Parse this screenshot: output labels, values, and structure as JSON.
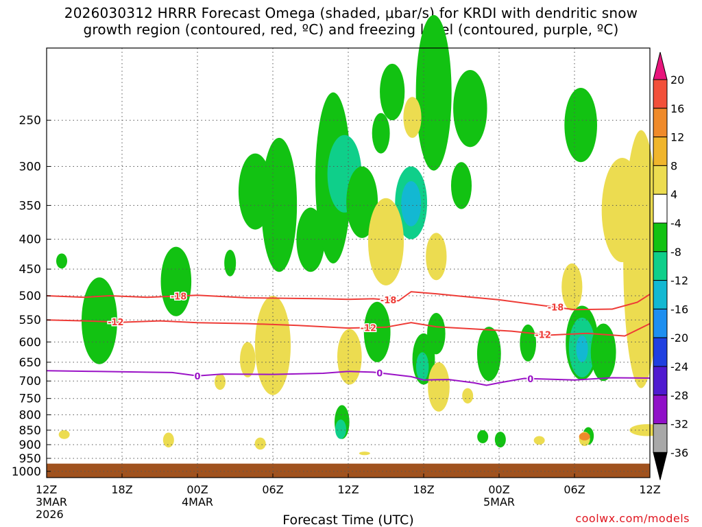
{
  "title_line1": "2026030312 HRRR Forecast Omega (shaded, μbar/s) for KRDI with dendritic snow",
  "title_line2": "growth region (contoured, red, ºC) and freezing level (contoured, purple, ºC)",
  "credit": "coolwx.com/models",
  "chart_data": {
    "type": "time-height cross section",
    "xlabel": "Forecast Time (UTC)",
    "x_ticks": [
      {
        "hour": 0,
        "lines": [
          "12Z",
          "3MAR",
          "2026"
        ]
      },
      {
        "hour": 6,
        "lines": [
          "18Z"
        ]
      },
      {
        "hour": 12,
        "lines": [
          "00Z",
          "4MAR"
        ]
      },
      {
        "hour": 18,
        "lines": [
          "06Z"
        ]
      },
      {
        "hour": 24,
        "lines": [
          "12Z"
        ]
      },
      {
        "hour": 30,
        "lines": [
          "18Z"
        ]
      },
      {
        "hour": 36,
        "lines": [
          "00Z",
          "5MAR"
        ]
      },
      {
        "hour": 42,
        "lines": [
          "06Z"
        ]
      },
      {
        "hour": 48,
        "lines": [
          "12Z"
        ]
      }
    ],
    "xlim": [
      0,
      48
    ],
    "ylabel": "Pressure (hPa)",
    "ylim": [
      1025,
      190
    ],
    "y_ticks": [
      250,
      300,
      350,
      400,
      450,
      500,
      550,
      600,
      650,
      700,
      750,
      800,
      850,
      900,
      950,
      1000
    ],
    "ground_top_hpa": 970,
    "colorbar": {
      "labels": [
        20,
        16,
        12,
        8,
        4,
        -4,
        -8,
        -12,
        -16,
        -20,
        -24,
        -28,
        -32,
        -36
      ],
      "colors": [
        "#e8157c",
        "#f2503a",
        "#ef8a2a",
        "#f0b52c",
        "#ecdc50",
        "#ffffff",
        "#12c212",
        "#0fcf8a",
        "#13b8d2",
        "#1e8ff0",
        "#2040e0",
        "#4f1ad0",
        "#9010c8",
        "#a8a8a8",
        "#000000"
      ]
    },
    "dgz_contours": [
      {
        "level": -18,
        "label": "-18",
        "points": [
          [
            0,
            500
          ],
          [
            3,
            503
          ],
          [
            5,
            500
          ],
          [
            8,
            503
          ],
          [
            12,
            499
          ],
          [
            16,
            504
          ],
          [
            22,
            506
          ],
          [
            24,
            507
          ],
          [
            26,
            506
          ],
          [
            28,
            510
          ],
          [
            29,
            492
          ],
          [
            31,
            496
          ],
          [
            33,
            501
          ],
          [
            36,
            508
          ],
          [
            39,
            518
          ],
          [
            42,
            528
          ],
          [
            45,
            527
          ],
          [
            47,
            513
          ],
          [
            48,
            497
          ]
        ]
      },
      {
        "level": -12,
        "label": "-12",
        "points": [
          [
            0,
            550
          ],
          [
            3,
            552
          ],
          [
            6,
            555
          ],
          [
            9,
            552
          ],
          [
            12,
            556
          ],
          [
            16,
            558
          ],
          [
            20,
            562
          ],
          [
            24,
            568
          ],
          [
            27,
            566
          ],
          [
            29,
            556
          ],
          [
            31,
            565
          ],
          [
            34,
            570
          ],
          [
            37,
            575
          ],
          [
            40,
            584
          ],
          [
            43,
            580
          ],
          [
            46,
            586
          ],
          [
            48,
            558
          ]
        ]
      }
    ],
    "freezing_contour": {
      "level": 0,
      "label": "0",
      "points": [
        [
          0,
          672
        ],
        [
          4,
          674
        ],
        [
          8,
          676
        ],
        [
          10,
          677
        ],
        [
          12,
          686
        ],
        [
          14,
          681
        ],
        [
          18,
          682
        ],
        [
          22,
          679
        ],
        [
          24,
          674
        ],
        [
          26,
          676
        ],
        [
          29,
          688
        ],
        [
          30,
          697
        ],
        [
          32,
          696
        ],
        [
          34,
          705
        ],
        [
          35,
          712
        ],
        [
          36,
          705
        ],
        [
          38,
          693
        ],
        [
          42,
          697
        ],
        [
          45,
          691
        ],
        [
          48,
          692
        ]
      ]
    },
    "shaded_regions": [
      {
        "value": -6,
        "hour": 1.2,
        "p_top": 423,
        "p_bot": 449
      },
      {
        "value": -6,
        "hour": 4.2,
        "p_top": 465,
        "p_bot": 655
      },
      {
        "value": -6,
        "hour": 10.3,
        "p_top": 412,
        "p_bot": 542
      },
      {
        "value": -6,
        "hour": 14.6,
        "p_top": 417,
        "p_bot": 463
      },
      {
        "value": -6,
        "hour": 16.6,
        "p_top": 285,
        "p_bot": 385
      },
      {
        "value": -6,
        "hour": 18.5,
        "p_top": 268,
        "p_bot": 455
      },
      {
        "value": -6,
        "hour": 21,
        "p_top": 353,
        "p_bot": 455
      },
      {
        "value": -6,
        "hour": 22.8,
        "p_top": 224,
        "p_bot": 440
      },
      {
        "value": -10,
        "hour": 23.7,
        "p_top": 265,
        "p_bot": 360
      },
      {
        "value": -6,
        "hour": 25.1,
        "p_top": 300,
        "p_bot": 398
      },
      {
        "value": -6,
        "hour": 26.6,
        "p_top": 243,
        "p_bot": 285
      },
      {
        "value": -6,
        "hour": 27.5,
        "p_top": 200,
        "p_bot": 250
      },
      {
        "value": -6,
        "hour": 26.3,
        "p_top": 512,
        "p_bot": 650
      },
      {
        "value": -10,
        "hour": 29,
        "p_top": 300,
        "p_bot": 400
      },
      {
        "value": -14,
        "hour": 29,
        "p_top": 318,
        "p_bot": 380
      },
      {
        "value": -6,
        "hour": 30,
        "p_top": 580,
        "p_bot": 710
      },
      {
        "value": -10,
        "hour": 29.9,
        "p_top": 625,
        "p_bot": 700
      },
      {
        "value": -6,
        "hour": 31,
        "p_top": 535,
        "p_bot": 630
      },
      {
        "value": -6,
        "hour": 30.8,
        "p_top": 165,
        "p_bot": 305
      },
      {
        "value": -6,
        "hour": 33.7,
        "p_top": 205,
        "p_bot": 278
      },
      {
        "value": -6,
        "hour": 33,
        "p_top": 295,
        "p_bot": 355
      },
      {
        "value": -6,
        "hour": 35.2,
        "p_top": 565,
        "p_bot": 700
      },
      {
        "value": -6,
        "hour": 38.3,
        "p_top": 560,
        "p_bot": 648
      },
      {
        "value": -6,
        "hour": 42.5,
        "p_top": 220,
        "p_bot": 295
      },
      {
        "value": -6,
        "hour": 42.6,
        "p_top": 520,
        "p_bot": 697
      },
      {
        "value": -10,
        "hour": 42.6,
        "p_top": 545,
        "p_bot": 690
      },
      {
        "value": -14,
        "hour": 42.6,
        "p_top": 585,
        "p_bot": 650
      },
      {
        "value": -6,
        "hour": 44.3,
        "p_top": 558,
        "p_bot": 700
      },
      {
        "value": -6,
        "hour": 23.5,
        "p_top": 770,
        "p_bot": 880
      },
      {
        "value": -10,
        "hour": 23.4,
        "p_top": 815,
        "p_bot": 880
      },
      {
        "value": -6,
        "hour": 34.7,
        "p_top": 850,
        "p_bot": 895
      },
      {
        "value": -6,
        "hour": 43.1,
        "p_top": 840,
        "p_bot": 900
      },
      {
        "value": -6,
        "hour": 36.1,
        "p_top": 855,
        "p_bot": 910
      },
      {
        "value": 6,
        "hour": 29.1,
        "p_top": 228,
        "p_bot": 268
      },
      {
        "value": 6,
        "hour": 45.8,
        "p_top": 290,
        "p_bot": 438
      },
      {
        "value": 6,
        "hour": 47.3,
        "p_top": 260,
        "p_bot": 720
      },
      {
        "value": 6,
        "hour": 24.1,
        "p_top": 570,
        "p_bot": 710
      },
      {
        "value": 6,
        "hour": 27,
        "p_top": 340,
        "p_bot": 480
      },
      {
        "value": 6,
        "hour": 31,
        "p_top": 390,
        "p_bot": 470
      },
      {
        "value": 6,
        "hour": 31.2,
        "p_top": 650,
        "p_bot": 790
      },
      {
        "value": 6,
        "hour": 18,
        "p_top": 500,
        "p_bot": 740
      },
      {
        "value": 6,
        "hour": 16,
        "p_top": 600,
        "p_bot": 690
      },
      {
        "value": 6,
        "hour": 13.8,
        "p_top": 680,
        "p_bot": 725
      },
      {
        "value": 6,
        "hour": 17,
        "p_top": 875,
        "p_bot": 918
      },
      {
        "value": 6,
        "hour": 9.7,
        "p_top": 858,
        "p_bot": 910
      },
      {
        "value": 6,
        "hour": 1.4,
        "p_top": 850,
        "p_bot": 880
      },
      {
        "value": 6,
        "hour": 47.8,
        "p_top": 830,
        "p_bot": 870
      },
      {
        "value": 6,
        "hour": 41.8,
        "p_top": 440,
        "p_bot": 530
      },
      {
        "value": 6,
        "hour": 39.2,
        "p_top": 870,
        "p_bot": 900
      },
      {
        "value": 6,
        "hour": 33.5,
        "p_top": 720,
        "p_bot": 765
      },
      {
        "value": 6,
        "hour": 42.8,
        "p_top": 855,
        "p_bot": 905
      },
      {
        "value": 12,
        "hour": 42.8,
        "p_top": 858,
        "p_bot": 885
      },
      {
        "value": 6,
        "hour": 25.3,
        "p_top": 925,
        "p_bot": 938
      }
    ]
  }
}
